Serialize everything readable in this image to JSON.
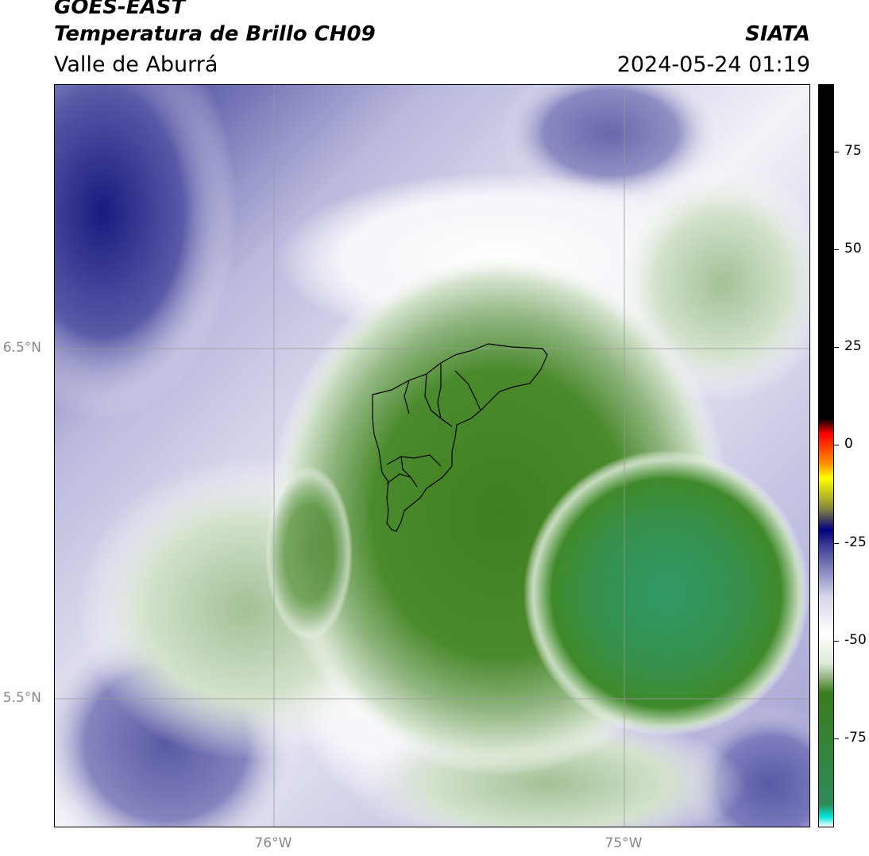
{
  "header": {
    "satellite": "GOES-EAST",
    "product": "Temperatura de Brillo CH09",
    "organization": "SIATA",
    "region": "Valle de Aburrá",
    "datetime": "2024-05-24 01:19"
  },
  "map": {
    "lat_labels": [
      "6.5°N",
      "5.5°N"
    ],
    "lon_labels": [
      "76°W",
      "75°W"
    ]
  },
  "colorbar": {
    "ticks": [
      "75",
      "50",
      "25",
      "0",
      "-25",
      "-50",
      "-75"
    ],
    "colors": [
      "#ffffff",
      "#00e5d8",
      "#2e8b57",
      "#3a7d1e",
      "#dfe9d9",
      "#ffffff",
      "#d6d6ea",
      "#3a3a96",
      "#000080",
      "#8a8a3a",
      "#ffff00",
      "#ff8c00",
      "#ff0000",
      "#000000"
    ]
  }
}
